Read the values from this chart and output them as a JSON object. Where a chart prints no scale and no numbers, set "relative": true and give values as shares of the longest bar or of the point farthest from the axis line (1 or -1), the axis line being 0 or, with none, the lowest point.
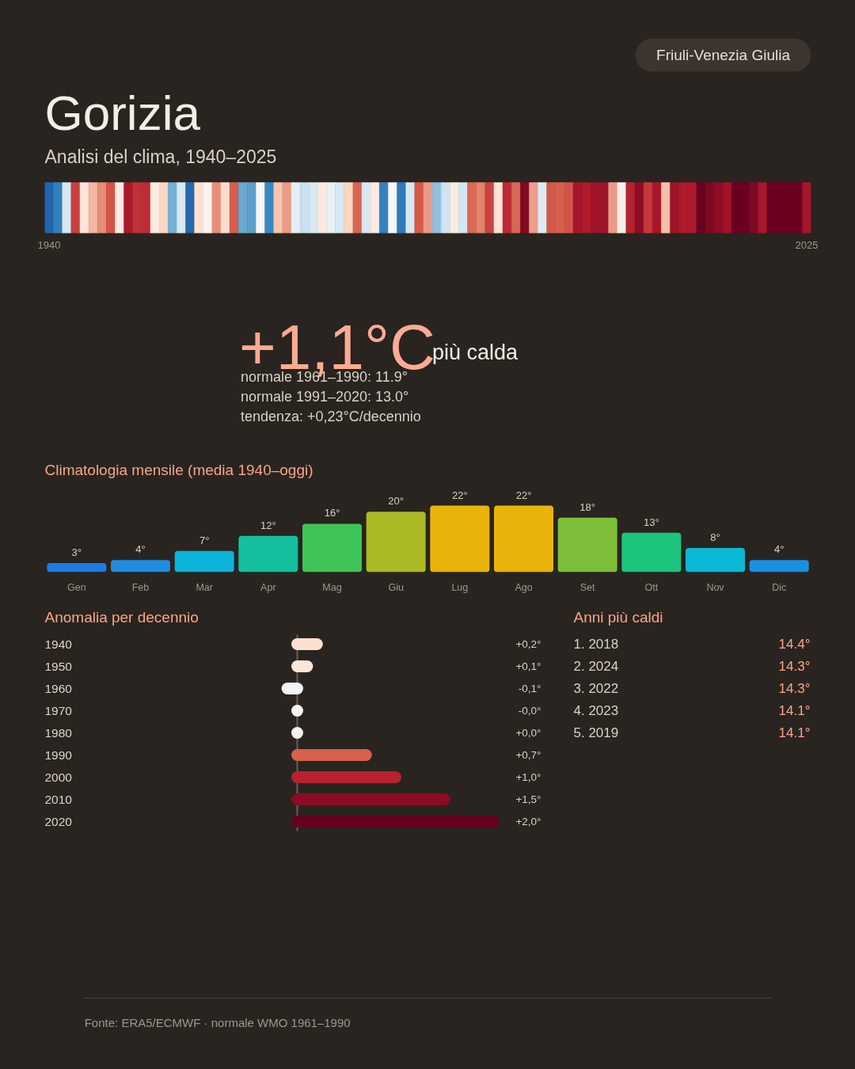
{
  "chart_data": [
    {
      "type": "bar",
      "title": "Gorizia",
      "subtitle": "Analisi del clima, 1940–2025",
      "annotations": [
        "Friuli-Venezia Giulia"
      ],
      "relative": true,
      "tick_labels": "x",
      "categories": [
        "1940",
        null,
        null,
        null,
        null,
        null,
        null,
        null,
        null,
        null,
        null,
        null,
        null,
        null,
        null,
        null,
        null,
        null,
        null,
        null,
        null,
        null,
        null,
        null,
        null,
        null,
        null,
        null,
        null,
        null,
        null,
        null,
        null,
        null,
        null,
        null,
        null,
        null,
        null,
        null,
        null,
        null,
        null,
        null,
        null,
        null,
        null,
        null,
        null,
        null,
        null,
        null,
        null,
        null,
        null,
        null,
        null,
        null,
        null,
        null,
        null,
        null,
        null,
        null,
        null,
        null,
        null,
        null,
        null,
        null,
        null,
        null,
        null,
        null,
        null,
        null,
        null,
        null,
        null,
        null,
        null,
        null,
        null,
        null,
        null,
        null,
        "2025"
      ],
      "values": [
        1,
        1,
        1,
        1,
        1,
        1,
        1,
        1,
        1,
        1,
        1,
        1,
        1,
        1,
        1,
        1,
        1,
        1,
        1,
        1,
        1,
        1,
        1,
        1,
        1,
        1,
        1,
        1,
        1,
        1,
        1,
        1,
        1,
        1,
        1,
        1,
        1,
        1,
        1,
        1,
        1,
        1,
        1,
        1,
        1,
        1,
        1,
        1,
        1,
        1,
        1,
        1,
        1,
        1,
        1,
        1,
        1,
        1,
        1,
        1,
        1,
        1,
        1,
        1,
        1,
        1,
        1,
        1,
        1,
        1,
        1,
        1,
        1,
        1,
        1,
        1,
        1,
        1,
        1,
        1,
        1,
        1,
        1,
        1,
        1,
        1,
        1
      ],
      "colors": [
        "#2166ac",
        "#3180bd",
        "#d6e7f1",
        "#c94040",
        "#fde3d8",
        "#f4b6a0",
        "#e78d78",
        "#d55349",
        "#fbeae0",
        "#aa1a2b",
        "#c0313a",
        "#bd2c36",
        "#fcebe1",
        "#fcd8c4",
        "#74b1d4",
        "#d7e8f1",
        "#2568ae",
        "#fde0d0",
        "#f8f4f1",
        "#e68e7a",
        "#fddccc",
        "#d65f4e",
        "#6aa9d0",
        "#5c9fcb",
        "#f7f7f7",
        "#3889c0",
        "#f7c4ad",
        "#e99c86",
        "#e4eef5",
        "#c9e0ee",
        "#d8e8f1",
        "#fbe9e1",
        "#e8f1f5",
        "#d8e8f0",
        "#fbd5bf",
        "#d96653",
        "#d9e8f0",
        "#fbebe2",
        "#3382be",
        "#f5f6f8",
        "#2f7cba",
        "#d6e8f1",
        "#d55a4a",
        "#e99b88",
        "#8fbfdd",
        "#cfe4f0",
        "#faece3",
        "#d4e6f0",
        "#db6852",
        "#e3836d",
        "#c94441",
        "#fde3d4",
        "#bd2a35",
        "#d96755",
        "#7e0b22",
        "#ec9f8a",
        "#deebf2",
        "#d35849",
        "#d5604d",
        "#d1534a",
        "#a3162b",
        "#b11b2c",
        "#a2132b",
        "#9f142a",
        "#e99b88",
        "#f9efe9",
        "#b52330",
        "#8c0d25",
        "#c6373c",
        "#a8152b",
        "#f6c0aa",
        "#9e1429",
        "#ae1b2c",
        "#ae1b2c",
        "#6a0020",
        "#7d0a22",
        "#8c0d25",
        "#a1142a",
        "#6a0020",
        "#6a0020",
        "#7d0a22",
        "#a8172b",
        "#6a0020",
        "#6a0020",
        "#6a0020",
        "#6a0020",
        "#a4162b"
      ]
    },
    {
      "type": "other",
      "annotations": [
        "+1,1°C",
        "più calda",
        "normale 1961–1990: 11.9°",
        "normale 1991–2020: 13.0°",
        "tendenza: +0,23°C/decennio"
      ]
    },
    {
      "type": "bar",
      "title": "Climatologia mensile (media 1940–oggi)",
      "tick_labels": "x",
      "categories": [
        "Gen",
        "Feb",
        "Mar",
        "Apr",
        "Mag",
        "Giu",
        "Lug",
        "Ago",
        "Set",
        "Ott",
        "Nov",
        "Dic"
      ],
      "values": [
        3,
        4,
        7,
        12,
        16,
        20,
        22,
        22,
        18,
        13,
        8,
        4
      ],
      "value_labels": [
        "3°",
        "4°",
        "7°",
        "12°",
        "16°",
        "20°",
        "22°",
        "22°",
        "18°",
        "13°",
        "8°",
        "4°"
      ],
      "colors": [
        "#1e7be3",
        "#1e8ce0",
        "#0cb3d9",
        "#13bf9e",
        "#3ec456",
        "#abba24",
        "#e8b40a",
        "#e8b40a",
        "#7cbe38",
        "#1cc47c",
        "#0bb8d6",
        "#1a90e0"
      ]
    },
    {
      "type": "bar",
      "orientation": "horizontal",
      "title": "Anomalia per decennio",
      "tick_labels": "y",
      "categories": [
        "1940",
        "1950",
        "1960",
        "1970",
        "1980",
        "1990",
        "2000",
        "2010",
        "2020"
      ],
      "values": [
        0.2,
        0.1,
        -0.1,
        -0.0,
        0.0,
        0.7,
        1.0,
        1.5,
        2.0
      ],
      "value_labels": [
        "+0,2°",
        "+0,1°",
        "-0,1°",
        "-0,0°",
        "+0,0°",
        "+0,7°",
        "+1,0°",
        "+1,5°",
        "+2,0°"
      ],
      "colors": [
        "#fde0d2",
        "#fbe6da",
        "#f4f4f4",
        "#f4f4f4",
        "#f6f1ee",
        "#d6604d",
        "#b8212f",
        "#8b0c22",
        "#67001f"
      ],
      "ref_lines": [
        {
          "axis": "x",
          "value": 0,
          "color": "#6b5f55"
        }
      ]
    },
    {
      "type": "other",
      "title": "Anni più caldi",
      "annotations": [
        "1. 2018",
        "14.4°",
        "2. 2024",
        "14.3°",
        "3. 2022",
        "14.3°",
        "4. 2023",
        "14.1°",
        "5. 2019",
        "14.1°"
      ]
    },
    {
      "type": "other",
      "annotations": [
        "Fonte: ERA5/ECMWF · normale WMO 1961–1990"
      ]
    }
  ]
}
